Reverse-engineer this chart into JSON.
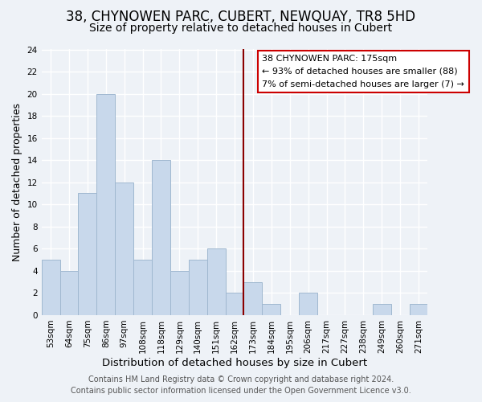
{
  "title": "38, CHYNOWEN PARC, CUBERT, NEWQUAY, TR8 5HD",
  "subtitle": "Size of property relative to detached houses in Cubert",
  "xlabel": "Distribution of detached houses by size in Cubert",
  "ylabel": "Number of detached properties",
  "bar_values": [
    5,
    4,
    11,
    20,
    12,
    5,
    14,
    4,
    5,
    6,
    2,
    3,
    1,
    0,
    2,
    0,
    0,
    0,
    1,
    0,
    1
  ],
  "bar_labels": [
    "53sqm",
    "64sqm",
    "75sqm",
    "86sqm",
    "97sqm",
    "108sqm",
    "118sqm",
    "129sqm",
    "140sqm",
    "151sqm",
    "162sqm",
    "173sqm",
    "184sqm",
    "195sqm",
    "206sqm",
    "217sqm",
    "227sqm",
    "238sqm",
    "249sqm",
    "260sqm",
    "271sqm"
  ],
  "bar_color": "#c8d8eb",
  "bar_edgecolor": "#a0b8d0",
  "ylim": [
    0,
    24
  ],
  "yticks": [
    0,
    2,
    4,
    6,
    8,
    10,
    12,
    14,
    16,
    18,
    20,
    22,
    24
  ],
  "vline_after_index": 10,
  "vline_color": "#8b0000",
  "annotation_title": "38 CHYNOWEN PARC: 175sqm",
  "annotation_line2": "← 93% of detached houses are smaller (88)",
  "annotation_line3": "7% of semi-detached houses are larger (7) →",
  "annotation_box_edgecolor": "#cc0000",
  "footer_line1": "Contains HM Land Registry data © Crown copyright and database right 2024.",
  "footer_line2": "Contains public sector information licensed under the Open Government Licence v3.0.",
  "background_color": "#eef2f7",
  "grid_color": "#ffffff",
  "title_fontsize": 12,
  "subtitle_fontsize": 10,
  "xlabel_fontsize": 9.5,
  "ylabel_fontsize": 9,
  "tick_fontsize": 7.5,
  "footer_fontsize": 7
}
